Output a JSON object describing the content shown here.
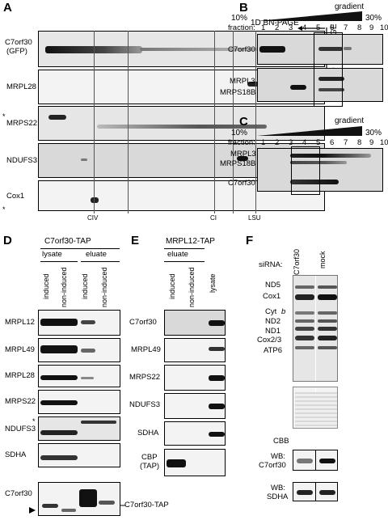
{
  "panel_letters": [
    "A",
    "B",
    "C",
    "D",
    "E",
    "F"
  ],
  "panelA": {
    "header_1d": "1D BN-PAGE",
    "header_2d": "2D SDS-PAGE",
    "rows": [
      "C7orf30\n(GFP)",
      "MRPL28",
      "MRPS22",
      "NDUFS3",
      "Cox1"
    ],
    "row_c7_line1": "C7orf30",
    "row_c7_line2": "(GFP)",
    "markers": [
      "CIV",
      "CI",
      "LSU"
    ],
    "asterisk": "*"
  },
  "panelB": {
    "gradient_label": "gradient",
    "start_pct": "10%",
    "end_pct": "30%",
    "fraction_label": "fraction:",
    "fractions": [
      "1",
      "2",
      "3",
      "4",
      "5",
      "6",
      "7",
      "8",
      "9",
      "10"
    ],
    "rows": [
      "C7orf30",
      "MRPL3",
      "MRPS18B"
    ]
  },
  "panelC": {
    "gradient_label": "gradient",
    "start_pct": "10%",
    "end_pct": "30%",
    "fraction_label": "fraction:",
    "fractions": [
      "1",
      "2",
      "3",
      "4",
      "5",
      "6",
      "7",
      "8",
      "9",
      "10"
    ],
    "rows": [
      "MRPL3",
      "MRPS18B",
      "C7orf30"
    ]
  },
  "panelD": {
    "title": "C7orf30-TAP",
    "group_lysate": "lysate",
    "group_eluate": "eluate",
    "lanes": [
      "induced",
      "non-induced",
      "induced",
      "non-induced"
    ],
    "rows": [
      "MRPL12",
      "MRPL49",
      "MRPL28",
      "MRPS22",
      "NDUFS3",
      "SDHA",
      "C7orf30"
    ],
    "tap_label": "C7orf30-TAP",
    "asterisk": "*"
  },
  "panelE": {
    "title": "MRPL12-TAP",
    "group_eluate": "eluate",
    "lanes": [
      "induced",
      "non-induced",
      "lysate"
    ],
    "rows": [
      "C7orf30",
      "MRPL49",
      "MRPS22",
      "NDUFS3",
      "SDHA"
    ],
    "cbp_line1": "CBP",
    "cbp_line2": "(TAP)"
  },
  "panelF": {
    "sirna_label": "siRNA:",
    "lanes": [
      "C7orf30",
      "mock"
    ],
    "bands": [
      "ND5",
      "Cox1",
      "Cyt",
      "b",
      "ND2",
      "ND1",
      "Cox2/3",
      "ATP6"
    ],
    "cbb": "CBB",
    "wb_c7_line1": "WB:",
    "wb_c7_line2": "C7orf30",
    "wb_sdha_line1": "WB:",
    "wb_sdha_line2": "SDHA"
  }
}
